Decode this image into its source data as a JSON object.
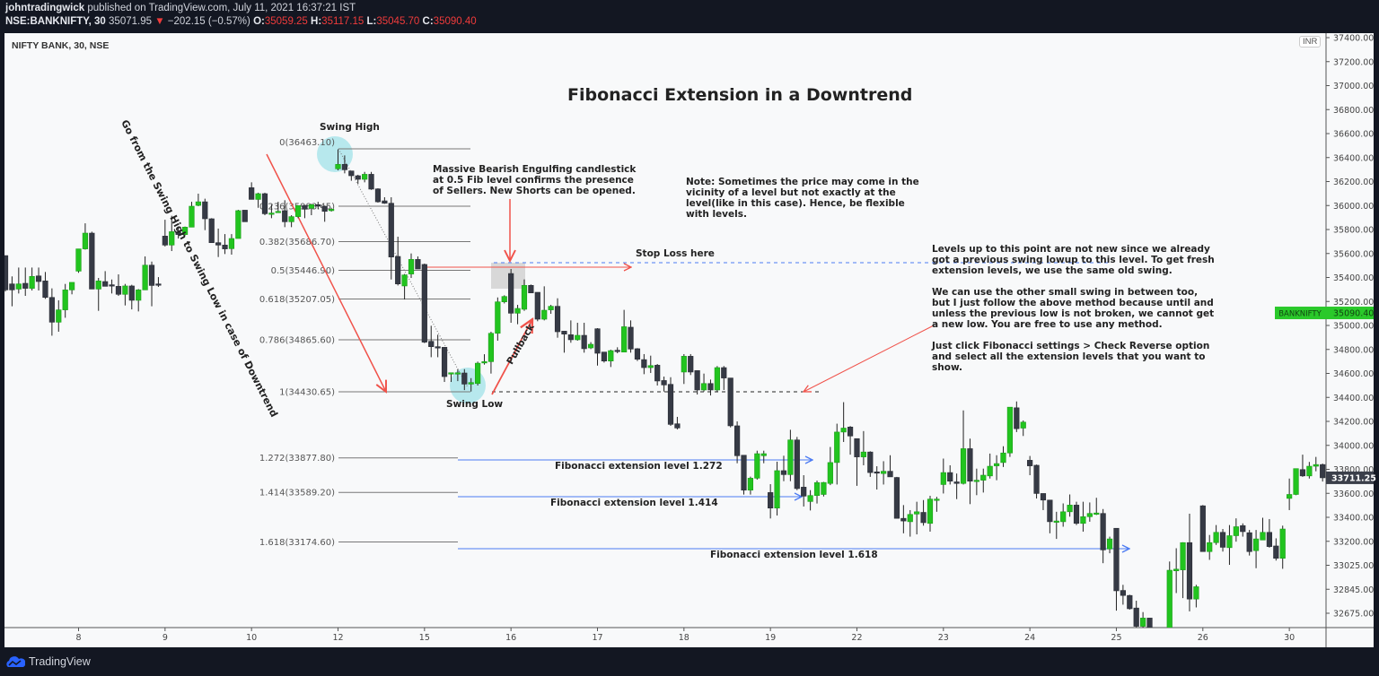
{
  "header": {
    "author": "johntradingwick",
    "published": "published on TradingView.com, July 11, 2021 16:37:21 IST",
    "symbol": "NSE:BANKNIFTY, 30",
    "last": "35071.95",
    "change": "−202.15 (−0.57%)",
    "o_label": "O:",
    "o": "35059.25",
    "h_label": "H:",
    "h": "35117.15",
    "l_label": "L:",
    "l": "35045.70",
    "c_label": "C:",
    "c": "35090.40"
  },
  "chart_title_bar": "NIFTY BANK, 30, NSE",
  "currency": "INR",
  "footer": {
    "brand": "TradingView",
    "icon": "tradingview-cloud-logo"
  },
  "colors": {
    "up": "#22c41f",
    "down": "#363a45",
    "accent_red": "#f0524a",
    "accent_blue": "#4c7bf3",
    "highlight": "#a6e3ea"
  },
  "annotations": {
    "title": "Fibonacci Extension in a Downtrend",
    "swing_high": "Swing High",
    "swing_low": "Swing Low",
    "go_from": "Go from the Swing High to Swing Low in case of Downtrend",
    "engulfing": "Massive Bearish Engulfing candlestick\nat 0.5 Fib level confirms the presence\nof Sellers. New Shorts can be opened.",
    "note": "Note: Sometimes the price may come in the\nvicinity of a level but not exactly at the\nlevel(like in this case). Hence, be flexible\nwith levels.",
    "levels_note": "Levels up to this point are not new since we already\ngot a previous swing lowup to this level. To get fresh\nextension levels, we use the same old swing.\n\nWe can use the other small swing in between too,\nbut I just follow the above method because until and\nunless the previous low is not broken, we cannot get\na new low. You are free to use any method.\n\nJust click Fibonacci settings > Check Reverse option\nand select all the extension levels that you want to\nshow.",
    "stop_loss": "Stop Loss here",
    "pullback": "Pullback",
    "ext_1272": "Fibonacci extension level 1.272",
    "ext_1414": "Fibonacci extension level 1.414",
    "ext_1618": "Fibonacci extension level 1.618"
  },
  "chart_data": {
    "type": "candlestick",
    "title": "Fibonacci Extension in a Downtrend",
    "symbol": "NSE:BANKNIFTY",
    "interval_minutes": 30,
    "x_ticks": [
      {
        "label": "8",
        "index": 11
      },
      {
        "label": "9",
        "index": 24
      },
      {
        "label": "10",
        "index": 37
      },
      {
        "label": "12",
        "index": 50
      },
      {
        "label": "15",
        "index": 63
      },
      {
        "label": "16",
        "index": 76
      },
      {
        "label": "17",
        "index": 89
      },
      {
        "label": "18",
        "index": 102
      },
      {
        "label": "19",
        "index": 115
      },
      {
        "label": "22",
        "index": 128
      },
      {
        "label": "23",
        "index": 141
      },
      {
        "label": "24",
        "index": 154
      },
      {
        "label": "25",
        "index": 167
      },
      {
        "label": "26",
        "index": 180
      },
      {
        "label": "30",
        "index": 193
      }
    ],
    "y_ticks": [
      "37400.00",
      "37200.00",
      "37000.00",
      "36800.00",
      "36600.00",
      "36400.00",
      "36200.00",
      "36000.00",
      "35800.00",
      "35600.00",
      "35400.00",
      "35200.00",
      "35000.00",
      "34800.00",
      "34600.00",
      "34400.00",
      "34200.00",
      "34000.00",
      "33800.00",
      "33600.00",
      "33400.00",
      "33200.00",
      "33025.00",
      "32845.00",
      "32675.00"
    ],
    "ylim": [
      32200,
      37500
    ],
    "price_badge": {
      "label": "BANKNIFTY",
      "value": "35090.40"
    },
    "last_price": "33711.25",
    "fib_levels": [
      {
        "ratio": "0",
        "price": "36463.10",
        "text": "0(36463.10)"
      },
      {
        "ratio": "0.236",
        "price": "35983.45",
        "text": "0.236(35983.45)"
      },
      {
        "ratio": "0.382",
        "price": "35686.70",
        "text": "0.382(35686.70)"
      },
      {
        "ratio": "0.5",
        "price": "35446.90",
        "text": "0.5(35446.90)"
      },
      {
        "ratio": "0.618",
        "price": "35207.05",
        "text": "0.618(35207.05)"
      },
      {
        "ratio": "0.786",
        "price": "34865.60",
        "text": "0.786(34865.60)"
      },
      {
        "ratio": "1",
        "price": "34430.65",
        "text": "1(34430.65)"
      },
      {
        "ratio": "1.272",
        "price": "33877.80",
        "text": "1.272(33877.80)"
      },
      {
        "ratio": "1.414",
        "price": "33589.20",
        "text": "1.414(33589.20)"
      },
      {
        "ratio": "1.618",
        "price": "33174.60",
        "text": "1.618(33174.60)"
      }
    ],
    "candles_ohlc": [
      [
        35570,
        35570,
        35270,
        35283
      ],
      [
        35333,
        35396,
        35146,
        35283
      ],
      [
        35290,
        35470,
        35253,
        35333
      ],
      [
        35338,
        35470,
        35233,
        35296
      ],
      [
        35296,
        35470,
        35278,
        35396
      ],
      [
        35400,
        35470,
        35278,
        35353
      ],
      [
        35358,
        35433,
        35208,
        35220
      ],
      [
        35220,
        35296,
        34900,
        35013
      ],
      [
        35013,
        35196,
        34933,
        35116
      ],
      [
        35116,
        35333,
        35050,
        35283
      ],
      [
        35283,
        35346,
        35246,
        35346
      ],
      [
        35440,
        35626,
        35426,
        35626
      ],
      [
        35626,
        35840,
        35620,
        35758
      ],
      [
        35758,
        35770,
        35290,
        35290
      ],
      [
        35290,
        35383,
        35108,
        35358
      ],
      [
        35353,
        35440,
        35313,
        35313
      ],
      [
        35326,
        35370,
        35253,
        35316
      ],
      [
        35313,
        35413,
        35233,
        35246
      ],
      [
        35246,
        35333,
        35153,
        35316
      ],
      [
        35316,
        35326,
        35120,
        35196
      ],
      [
        35196,
        35290,
        35103,
        35283
      ],
      [
        35283,
        35563,
        35283,
        35490
      ],
      [
        35490,
        35520,
        35146,
        35320
      ],
      [
        35333,
        35390,
        35308,
        35326
      ],
      [
        35733,
        35870,
        35646,
        35658
      ],
      [
        35658,
        35903,
        35608,
        35770
      ],
      [
        35766,
        35813,
        35713,
        35746
      ],
      [
        35746,
        35813,
        35738,
        35808
      ],
      [
        35808,
        36020,
        35808,
        35983
      ],
      [
        35990,
        36088,
        35983,
        36020
      ],
      [
        36020,
        36046,
        35783,
        35878
      ],
      [
        35878,
        35883,
        35678,
        35678
      ],
      [
        35678,
        35796,
        35558,
        35658
      ],
      [
        35658,
        35750,
        35583,
        35626
      ],
      [
        35628,
        35750,
        35578,
        35713
      ],
      [
        35713,
        35953,
        35713,
        35946
      ],
      [
        35950,
        35950,
        35853,
        35853
      ],
      [
        36138,
        36183,
        36040,
        36040
      ],
      [
        36040,
        36096,
        35970,
        36088
      ],
      [
        36088,
        36096,
        35908,
        35920
      ],
      [
        35920,
        35996,
        35883,
        35926
      ],
      [
        35933,
        36020,
        35933,
        35940
      ],
      [
        35946,
        36033,
        35808,
        35853
      ],
      [
        35853,
        35908,
        35808,
        35896
      ],
      [
        35896,
        35988,
        35883,
        35988
      ],
      [
        35990,
        35990,
        35883,
        35958
      ],
      [
        35966,
        36003,
        35908,
        35996
      ],
      [
        35996,
        36020,
        35958,
        35983
      ],
      [
        35983,
        35988,
        35853,
        35940
      ],
      [
        35946,
        35970,
        35938,
        35958
      ],
      [
        36296,
        36458,
        36283,
        36333
      ],
      [
        36333,
        36408,
        36258,
        36288
      ],
      [
        36278,
        36278,
        36196,
        36238
      ],
      [
        36238,
        36246,
        36170,
        36208
      ],
      [
        36208,
        36270,
        36183,
        36250
      ],
      [
        36250,
        36270,
        36120,
        36126
      ],
      [
        36128,
        36133,
        36013,
        36020
      ],
      [
        36028,
        36058,
        36003,
        36008
      ],
      [
        36008,
        36058,
        35370,
        35558
      ],
      [
        35563,
        35728,
        35320,
        35333
      ],
      [
        35316,
        35416,
        35203,
        35408
      ],
      [
        35416,
        35588,
        35383,
        35538
      ],
      [
        35538,
        35563,
        35458,
        35458
      ],
      [
        35496,
        35503,
        34838,
        34846
      ],
      [
        34853,
        34983,
        34720,
        34808
      ],
      [
        34808,
        34908,
        34720,
        34803
      ],
      [
        34803,
        34803,
        34513,
        34558
      ],
      [
        34583,
        34590,
        34513,
        34590
      ],
      [
        34583,
        34620,
        34520,
        34590
      ],
      [
        34588,
        34620,
        34445,
        34495
      ],
      [
        34495,
        34545,
        34433,
        34508
      ],
      [
        34500,
        34683,
        34483,
        34670
      ],
      [
        34675,
        34745,
        34658,
        34683
      ],
      [
        34683,
        34933,
        34583,
        34920
      ],
      [
        34920,
        35220,
        34858,
        35183
      ],
      [
        35183,
        35238,
        35170,
        35228
      ],
      [
        35420,
        35458,
        35008,
        35088
      ],
      [
        35088,
        35158,
        34996,
        35128
      ],
      [
        35121,
        35371,
        35108,
        35321
      ],
      [
        35321,
        35328,
        35258,
        35258
      ],
      [
        35263,
        35263,
        35021,
        35038
      ],
      [
        35038,
        35313,
        35028,
        35113
      ],
      [
        35116,
        35158,
        35083,
        35146
      ],
      [
        35146,
        35213,
        34883,
        34933
      ],
      [
        34938,
        34938,
        34758,
        34913
      ],
      [
        34908,
        35028,
        34841,
        34866
      ],
      [
        34866,
        35008,
        34858,
        34903
      ],
      [
        34903,
        35008,
        34758,
        34791
      ],
      [
        34798,
        34846,
        34788,
        34828
      ],
      [
        34958,
        34963,
        34650,
        34753
      ],
      [
        34763,
        34763,
        34675,
        34688
      ],
      [
        34688,
        34783,
        34638,
        34775
      ],
      [
        34778,
        34803,
        34753,
        34768
      ],
      [
        34763,
        35116,
        34763,
        34975
      ],
      [
        34971,
        35028,
        34758,
        34788
      ],
      [
        34791,
        34796,
        34688,
        34703
      ],
      [
        34700,
        34746,
        34578,
        34633
      ],
      [
        34633,
        34733,
        34588,
        34650
      ],
      [
        34653,
        34663,
        34483,
        34521
      ],
      [
        34525,
        34558,
        34433,
        34488
      ],
      [
        34493,
        34553,
        34146,
        34158
      ],
      [
        34163,
        34221,
        34116,
        34128
      ],
      [
        34596,
        34746,
        34496,
        34728
      ],
      [
        34728,
        34746,
        34571,
        34596
      ],
      [
        34608,
        34608,
        34408,
        34446
      ],
      [
        34446,
        34583,
        34433,
        34500
      ],
      [
        34500,
        34533,
        34400,
        34446
      ],
      [
        34446,
        34646,
        34433,
        34633
      ],
      [
        34633,
        34646,
        34446,
        34546
      ],
      [
        34546,
        34546,
        34133,
        34146
      ],
      [
        34146,
        34183,
        33833,
        33896
      ],
      [
        33900,
        33900,
        33571,
        33608
      ],
      [
        33608,
        33721,
        33571,
        33708
      ],
      [
        33708,
        33938,
        33696,
        33913
      ],
      [
        33896,
        33938,
        33833,
        33913
      ],
      [
        33588,
        33658,
        33371,
        33458
      ],
      [
        33458,
        33846,
        33396,
        33771
      ],
      [
        33771,
        33896,
        33683,
        33738
      ],
      [
        33738,
        34113,
        33683,
        34028
      ],
      [
        34028,
        34053,
        33608,
        33621
      ],
      [
        33633,
        33733,
        33471,
        33558
      ],
      [
        33513,
        33608,
        33438,
        33563
      ],
      [
        33563,
        33688,
        33496,
        33671
      ],
      [
        33572,
        33677,
        33555,
        33672
      ],
      [
        33664,
        33969,
        33650,
        33839
      ],
      [
        33839,
        34164,
        33655,
        34094
      ],
      [
        34094,
        34344,
        34011,
        34127
      ],
      [
        34136,
        34144,
        33905,
        34061
      ],
      [
        34039,
        34039,
        33644,
        33886
      ],
      [
        33886,
        34102,
        33816,
        33927
      ],
      [
        33927,
        33933,
        33719,
        33755
      ],
      [
        33761,
        33808,
        33613,
        33752
      ],
      [
        33747,
        33850,
        33655,
        33766
      ],
      [
        33766,
        33900,
        33719,
        33719
      ],
      [
        33714,
        33719,
        33372,
        33372
      ],
      [
        33372,
        33483,
        33247,
        33350
      ],
      [
        33344,
        33441,
        33219,
        33405
      ],
      [
        33408,
        33511,
        33238,
        33427
      ],
      [
        33422,
        33525,
        33311,
        33336
      ],
      [
        33330,
        33561,
        33261,
        33533
      ],
      [
        33527,
        33552,
        33427,
        33533
      ],
      [
        33655,
        33872,
        33580,
        33755
      ],
      [
        33755,
        33816,
        33655,
        33683
      ],
      [
        33677,
        33747,
        33533,
        33664
      ],
      [
        33664,
        34275,
        33655,
        33955
      ],
      [
        33955,
        34039,
        33491,
        33683
      ],
      [
        33683,
        33788,
        33566,
        33691
      ],
      [
        33691,
        33788,
        33588,
        33733
      ],
      [
        33727,
        33914,
        33705,
        33808
      ],
      [
        33811,
        33900,
        33691,
        33830
      ],
      [
        33839,
        33975,
        33802,
        33919
      ],
      [
        33919,
        34302,
        33886,
        34302
      ],
      [
        34297,
        34350,
        34094,
        34122
      ],
      [
        34127,
        34191,
        34061,
        34177
      ],
      [
        33858,
        33894,
        33733,
        33811
      ],
      [
        33816,
        33822,
        33538,
        33580
      ],
      [
        33580,
        33580,
        33441,
        33525
      ],
      [
        33525,
        33525,
        33247,
        33344
      ],
      [
        33341,
        33427,
        33200,
        33350
      ],
      [
        33344,
        33497,
        33302,
        33427
      ],
      [
        33427,
        33572,
        33386,
        33483
      ],
      [
        33483,
        33511,
        33316,
        33330
      ],
      [
        33330,
        33511,
        33261,
        33386
      ],
      [
        33386,
        33505,
        33344,
        33413
      ],
      [
        33414,
        33544,
        33400,
        33417
      ],
      [
        33413,
        33450,
        32997,
        33108
      ],
      [
        33116,
        33219,
        33080,
        33200
      ],
      [
        33289,
        33289,
        32600,
        32766
      ],
      [
        32769,
        32816,
        32650,
        32727
      ],
      [
        32727,
        32733,
        32608,
        32616
      ],
      [
        32622,
        32683,
        32461,
        32469
      ],
      [
        32469,
        32588,
        32441,
        32538
      ],
      [
        32538,
        32538,
        32200,
        32230
      ],
      [
        32230,
        32350,
        32200,
        32297
      ],
      [
        32305,
        32350,
        32200,
        32230
      ],
      [
        32230,
        33011,
        32200,
        32938
      ],
      [
        32933,
        33122,
        32747,
        32947
      ],
      [
        32941,
        33172,
        32705,
        33169
      ],
      [
        33169,
        33411,
        32594,
        32697
      ],
      [
        32697,
        32816,
        32627,
        32800
      ],
      [
        33477,
        33483,
        33094,
        33094
      ],
      [
        33094,
        33233,
        33025,
        33169
      ],
      [
        33169,
        33316,
        33150,
        33255
      ],
      [
        33255,
        33283,
        33094,
        33130
      ],
      [
        33127,
        33316,
        32983,
        33227
      ],
      [
        33227,
        33372,
        33177,
        33302
      ],
      [
        33311,
        33330,
        33219,
        33261
      ],
      [
        33252,
        33275,
        33061,
        33094
      ],
      [
        33102,
        33275,
        32955,
        33200
      ],
      [
        33191,
        33377,
        33191,
        33255
      ],
      [
        33255,
        33366,
        33127,
        33136
      ],
      [
        33141,
        33205,
        33019,
        33038
      ],
      [
        33038,
        33311,
        32950,
        33283
      ],
      [
        33539,
        33705,
        33441,
        33572
      ],
      [
        33572,
        33788,
        33566,
        33788
      ],
      [
        33780,
        33905,
        33719,
        33727
      ],
      [
        33727,
        33844,
        33705,
        33808
      ],
      [
        33808,
        33886,
        33766,
        33822
      ],
      [
        33822,
        33830,
        33680,
        33711.25
      ]
    ]
  }
}
